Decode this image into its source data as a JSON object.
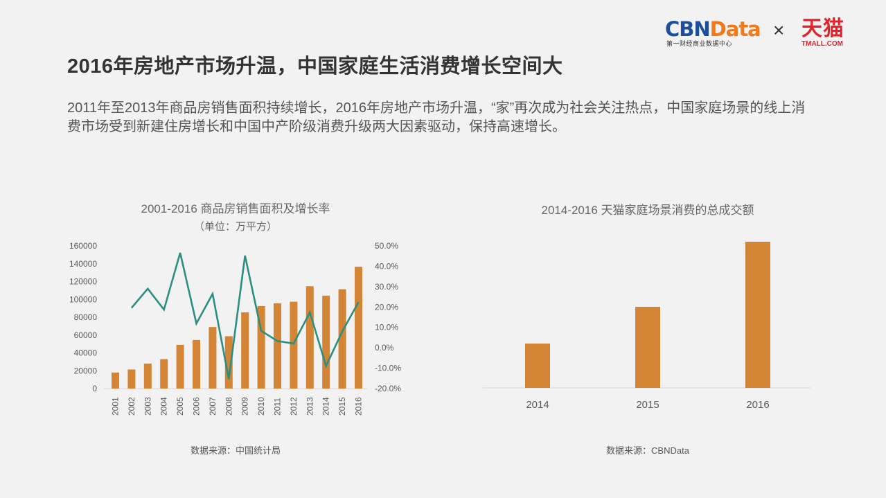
{
  "header": {
    "logo_cbn_part1": "CBN",
    "logo_cbn_part2": "Data",
    "logo_cbn_subtitle": "第一财经商业数据中心",
    "logo_separator": "×",
    "logo_tmall": "天猫",
    "logo_tmall_subtitle": "TMALL.COM",
    "title": "2016年房地产市场升温，中国家庭生活消费增长空间大",
    "intro": "2011年至2013年商品房销售面积持续增长，2016年房地产市场升温，“家”再次成为社会关注热点，中国家庭场景的线上消费市场受到新建住房增长和中国中产阶级消费升级两大因素驱动，保持高速增长。"
  },
  "colors": {
    "background": "#f2f2f2",
    "bar": "#d38535",
    "line": "#2a8f80",
    "axis": "#e0e0e0",
    "tick_text": "#595959"
  },
  "left_chart": {
    "title": "2001-2016 商品房销售面积及增长率",
    "subtitle": "（单位：万平方）",
    "source": "数据来源：中国统计局"
  },
  "right_chart": {
    "title": "2014-2016 天猫家庭场景消费的总成交额",
    "source": "数据来源：CBNData"
  },
  "chart_data": [
    {
      "type": "bar+line",
      "title": "2001-2016 商品房销售面积及增长率",
      "subtitle": "（单位：万平方）",
      "categories": [
        "2001",
        "2002",
        "2003",
        "2004",
        "2005",
        "2006",
        "2007",
        "2008",
        "2009",
        "2010",
        "2011",
        "2012",
        "2013",
        "2014",
        "2015",
        "2016"
      ],
      "series": [
        {
          "name": "商品房销售面积",
          "type": "bar",
          "axis": "left",
          "values": [
            18000,
            21400,
            28000,
            33000,
            49000,
            54500,
            69000,
            58700,
            85500,
            92500,
            95600,
            97400,
            114800,
            104200,
            111400,
            136600
          ]
        },
        {
          "name": "增长率",
          "type": "line",
          "axis": "right",
          "values": [
            null,
            19.6,
            29.0,
            18.7,
            46.6,
            11.9,
            26.5,
            -15.3,
            45.2,
            8.3,
            3.3,
            2.1,
            17.4,
            -8.9,
            8.0,
            22.4
          ]
        }
      ],
      "left_axis": {
        "ylim": [
          0,
          160000
        ],
        "ticks": [
          "160000",
          "140000",
          "120000",
          "100000",
          "80000",
          "60000",
          "40000",
          "20000",
          "0"
        ]
      },
      "right_axis": {
        "ylim": [
          -20,
          50
        ],
        "ticks": [
          "50.0%",
          "40.0%",
          "30.0%",
          "20.0%",
          "10.0%",
          "0.0%",
          "-10.0%",
          "-20.0%"
        ]
      },
      "xlabel": "",
      "ylabel": "",
      "grid": false,
      "legend": "none",
      "source": "数据来源：中国统计局"
    },
    {
      "type": "bar",
      "title": "2014-2016 天猫家庭场景消费的总成交额",
      "categories": [
        "2014",
        "2015",
        "2016"
      ],
      "values": [
        64,
        117,
        211
      ],
      "value_note": "relative bar heights (no axis shown)",
      "xlabel": "",
      "ylabel": "",
      "grid": false,
      "source": "数据来源：CBNData"
    }
  ]
}
